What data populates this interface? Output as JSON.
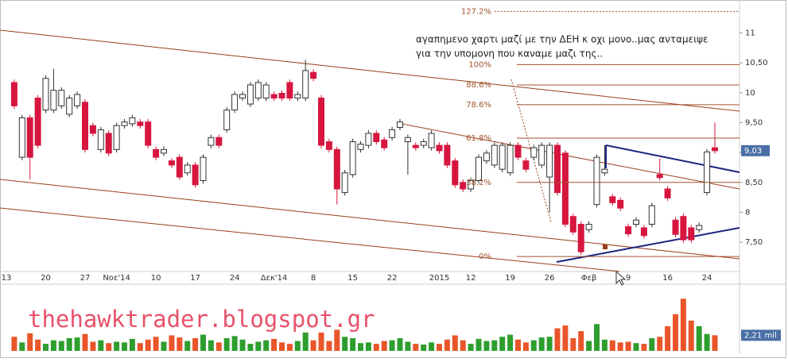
{
  "chart_data": {
    "type": "candlestick",
    "annotation_lines": [
      "αγαπημενο χαρτι μαζί με την ΔΕΗ κ οχι μονο..μας ανταμειψε",
      "για την υπομονη που καναμε μαζι της.."
    ],
    "watermark": "thehawktrader.blogspot.gr",
    "categories": [
      "13",
      null,
      null,
      null,
      null,
      "20",
      null,
      null,
      null,
      null,
      "27",
      null,
      null,
      null,
      "Νοε'14",
      null,
      null,
      null,
      null,
      "10",
      null,
      null,
      null,
      null,
      "17",
      null,
      null,
      null,
      null,
      "24",
      null,
      null,
      null,
      null,
      "Δεκ'14",
      null,
      null,
      null,
      null,
      "8",
      null,
      null,
      null,
      null,
      "15",
      null,
      null,
      null,
      null,
      "22",
      null,
      null,
      null,
      null,
      null,
      "2015",
      null,
      null,
      null,
      "12",
      null,
      null,
      null,
      null,
      "19",
      null,
      null,
      null,
      null,
      "26",
      null,
      null,
      null,
      null,
      "Φεβ",
      null,
      null,
      null,
      null,
      "9",
      null,
      null,
      null,
      null,
      "16",
      null,
      null,
      null,
      null,
      "24",
      null
    ],
    "open": [
      null,
      10.17,
      8.92,
      9.58,
      9.91,
      9.71,
      9.71,
      9.78,
      9.64,
      9.78,
      9.84,
      9.45,
      9.05,
      9.32,
      9.05,
      9.45,
      9.48,
      9.51,
      9.51,
      9.05,
      8.99,
      8.86,
      8.92,
      8.66,
      8.79,
      8.53,
      9.12,
      9.25,
      9.38,
      9.71,
      9.91,
      9.81,
      9.91,
      9.91,
      9.97,
      9.99,
      10.17,
      9.91,
      9.91,
      10.34,
      9.91,
      9.18,
      9.05,
      8.33,
      8.63,
      9.05,
      9.12,
      9.32,
      9.21,
      9.25,
      9.42,
      9.18,
      9.12,
      9.12,
      9.08,
      9.12,
      9.12,
      8.86,
      8.5,
      8.39,
      8.53,
      8.86,
      8.79,
      8.72,
      8.66,
      9.12,
      8.86,
      8.92,
      8.79,
      8.59,
      9.12,
      8.99,
      7.93,
      7.8,
      7.71,
      8.13,
      8.66,
      8.26,
      8.2,
      7.76,
      7.8,
      7.74,
      7.8,
      8.63,
      8.39,
      7.87,
      7.93,
      7.74,
      7.71,
      8.33,
      9.08
    ],
    "high": [
      null,
      10.22,
      9.63,
      9.63,
      9.96,
      10.29,
      10.4,
      10.09,
      9.96,
      10.02,
      9.89,
      9.5,
      9.43,
      9.37,
      9.5,
      9.56,
      9.63,
      9.56,
      9.56,
      9.1,
      9.1,
      8.91,
      8.97,
      8.84,
      8.84,
      8.97,
      9.3,
      9.3,
      9.76,
      10.02,
      10.02,
      10.18,
      10.22,
      10.18,
      10.02,
      10.04,
      10.22,
      10.02,
      10.55,
      10.39,
      9.96,
      9.23,
      9.1,
      8.71,
      9.23,
      9.19,
      9.37,
      9.37,
      9.26,
      9.43,
      9.56,
      9.3,
      9.17,
      9.23,
      9.37,
      9.17,
      9.17,
      8.91,
      8.55,
      8.58,
      8.97,
      9.04,
      9.17,
      9.17,
      9.17,
      9.17,
      8.91,
      9.13,
      9.17,
      9.17,
      9.17,
      9.04,
      7.98,
      7.85,
      7.85,
      8.97,
      9.12,
      8.31,
      8.25,
      7.81,
      7.92,
      7.79,
      8.16,
      8.9,
      8.44,
      7.92,
      7.98,
      7.79,
      7.83,
      9.06,
      9.5
    ],
    "low": [
      null,
      9.73,
      8.87,
      8.55,
      9.07,
      9.66,
      9.66,
      9.73,
      9.59,
      9.73,
      9.0,
      9.27,
      9.0,
      8.94,
      9.0,
      9.4,
      9.43,
      9.4,
      9.07,
      8.87,
      8.94,
      8.74,
      8.54,
      8.61,
      8.41,
      8.48,
      9.07,
      9.07,
      9.33,
      9.66,
      9.86,
      9.76,
      9.86,
      9.86,
      9.86,
      9.86,
      9.86,
      9.86,
      9.86,
      10.19,
      9.07,
      9.0,
      8.13,
      8.28,
      8.58,
      9.0,
      9.07,
      9.13,
      9.03,
      9.2,
      9.37,
      8.63,
      9.03,
      9.07,
      9.03,
      8.98,
      8.74,
      8.41,
      8.34,
      8.34,
      8.48,
      8.81,
      8.74,
      8.67,
      8.61,
      8.87,
      8.67,
      8.87,
      8.74,
      8.0,
      8.28,
      7.75,
      7.62,
      7.29,
      7.66,
      8.08,
      8.61,
      8.11,
      8.02,
      7.59,
      7.75,
      7.56,
      7.75,
      8.53,
      8.19,
      7.58,
      7.49,
      7.49,
      7.66,
      8.28,
      8.98
    ],
    "close": [
      null,
      9.78,
      9.58,
      8.92,
      9.12,
      10.24,
      10.04,
      10.04,
      9.91,
      9.97,
      9.05,
      9.32,
      9.38,
      8.99,
      9.45,
      9.51,
      9.58,
      9.45,
      9.12,
      8.92,
      9.05,
      8.79,
      8.59,
      8.79,
      8.46,
      8.92,
      9.25,
      9.12,
      9.71,
      9.97,
      9.97,
      10.13,
      10.17,
      10.13,
      9.91,
      9.91,
      9.91,
      9.97,
      10.37,
      10.24,
      9.12,
      9.05,
      8.39,
      8.66,
      9.18,
      9.14,
      9.32,
      9.18,
      9.08,
      9.38,
      9.51,
      9.25,
      9.08,
      9.18,
      9.32,
      9.03,
      8.79,
      8.46,
      8.39,
      8.53,
      8.92,
      8.99,
      9.12,
      9.12,
      9.12,
      8.92,
      8.72,
      9.08,
      9.12,
      9.12,
      8.33,
      7.8,
      7.67,
      7.34,
      7.8,
      8.92,
      8.72,
      8.16,
      8.07,
      7.64,
      7.87,
      7.61,
      8.11,
      8.58,
      8.24,
      7.63,
      7.54,
      7.54,
      7.78,
      9.01,
      9.03
    ],
    "volume": [
      null,
      2.0,
      1.2,
      2.5,
      1.6,
      1.0,
      1.5,
      1.4,
      1.8,
      1.9,
      2.4,
      1.3,
      1.5,
      1.1,
      1.3,
      1.2,
      1.7,
      1.1,
      1.6,
      2.0,
      1.3,
      2.2,
      1.9,
      1.4,
      1.8,
      2.3,
      1.5,
      1.2,
      1.8,
      2.1,
      1.6,
      1.0,
      1.3,
      1.5,
      1.7,
      1.2,
      1.0,
      1.4,
      2.6,
      1.5,
      2.6,
      1.4,
      3.0,
      2.0,
      1.8,
      1.1,
      1.2,
      1.0,
      1.4,
      1.5,
      1.8,
      1.3,
      1.0,
      0.9,
      1.2,
      1.0,
      1.6,
      2.2,
      1.5,
      1.0,
      1.7,
      1.4,
      1.5,
      2.0,
      2.3,
      1.6,
      1.2,
      1.5,
      1.9,
      2.0,
      3.2,
      3.6,
      1.8,
      2.8,
      1.4,
      3.8,
      1.6,
      1.5,
      1.2,
      1.3,
      1.1,
      1.0,
      1.8,
      2.0,
      3.5,
      5.2,
      7.4,
      4.3,
      3.5,
      2.4,
      2.21
    ],
    "up_color": "#ffffff",
    "down_color": "#d6163f",
    "volume_up_color": "#2e9e2e",
    "volume_down_color": "#e8562a",
    "ylim": [
      7.01,
      11.55
    ],
    "yticks": [
      {
        "value": 11,
        "label": "11"
      },
      {
        "value": 10.5,
        "label": "10,50"
      },
      {
        "value": 10,
        "label": "10"
      },
      {
        "value": 9.5,
        "label": "9,50"
      },
      {
        "value": 9,
        "label": "9"
      },
      {
        "value": 8.5,
        "label": "8,50"
      },
      {
        "value": 8,
        "label": "8"
      },
      {
        "value": 7.5,
        "label": "7,50"
      }
    ],
    "last_price": {
      "value": 9.03,
      "label": "9,03"
    },
    "volume_ylim": [
      0,
      9
    ],
    "last_volume": {
      "value": 2.21,
      "label": "2,21 mil"
    },
    "fib_levels": [
      {
        "level": {
          "value": 127.2,
          "label": "127.2%"
        },
        "price": 11.36
      },
      {
        "level": {
          "value": 100,
          "label": "100%"
        },
        "price": 10.47
      },
      {
        "level": {
          "value": 88.6,
          "label": "88.6%"
        },
        "price": 10.13
      },
      {
        "level": {
          "value": 78.6,
          "label": "78.6%"
        },
        "price": 9.8
      },
      {
        "level": {
          "value": 61.8,
          "label": "61.8%"
        },
        "price": 9.24
      },
      {
        "level": {
          "value": 38.2,
          "label": "38.2%"
        },
        "price": 8.5
      },
      {
        "level": {
          "value": 0,
          "label": "0%"
        },
        "price": 7.26
      }
    ],
    "fib_color": "#a0522d"
  }
}
